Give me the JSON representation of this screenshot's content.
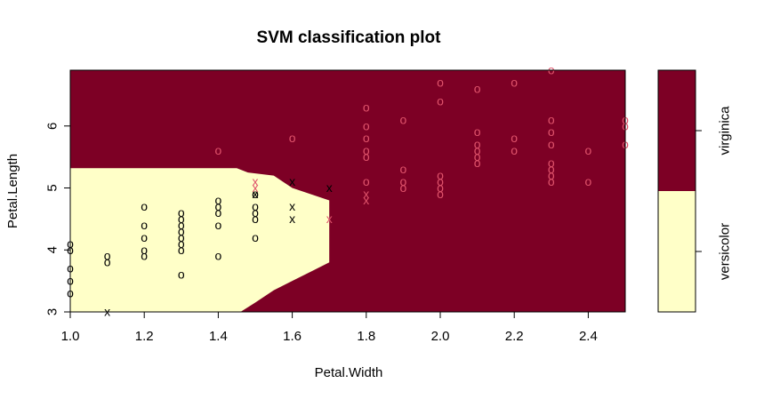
{
  "chart_data": {
    "type": "scatter",
    "title": "SVM classification plot",
    "xlabel": "Petal.Width",
    "ylabel": "Petal.Length",
    "xlim": [
      1.0,
      2.5
    ],
    "ylim": [
      3.0,
      6.9
    ],
    "x_ticks": [
      "1.0",
      "1.2",
      "1.4",
      "1.6",
      "1.8",
      "2.0",
      "2.2",
      "2.4"
    ],
    "y_ticks": [
      "3",
      "4",
      "5",
      "6"
    ],
    "classes": [
      "versicolor",
      "virginica"
    ],
    "region_colors": {
      "versicolor": "#FFFFC8",
      "virginica": "#7D0025"
    },
    "decision_boundary": [
      [
        1.0,
        5.32
      ],
      [
        1.45,
        5.32
      ],
      [
        1.48,
        5.25
      ],
      [
        1.55,
        5.2
      ],
      [
        1.6,
        5.0
      ],
      [
        1.7,
        4.8
      ],
      [
        1.7,
        3.8
      ],
      [
        1.65,
        3.65
      ],
      [
        1.6,
        3.5
      ],
      [
        1.55,
        3.35
      ],
      [
        1.5,
        3.15
      ],
      [
        1.46,
        3.0
      ],
      [
        1.0,
        3.0
      ]
    ],
    "marker_colors": {
      "versicolor": "#000000",
      "virginica": "#DF536B"
    },
    "marker_legend": {
      "o": "data point",
      "x": "support vector"
    },
    "points": [
      {
        "x": 1.0,
        "y": 3.3,
        "m": "o",
        "c": "versicolor"
      },
      {
        "x": 1.0,
        "y": 3.5,
        "m": "o",
        "c": "versicolor"
      },
      {
        "x": 1.0,
        "y": 3.7,
        "m": "o",
        "c": "versicolor"
      },
      {
        "x": 1.0,
        "y": 4.0,
        "m": "o",
        "c": "versicolor"
      },
      {
        "x": 1.0,
        "y": 4.1,
        "m": "o",
        "c": "versicolor"
      },
      {
        "x": 1.1,
        "y": 3.0,
        "m": "x",
        "c": "versicolor"
      },
      {
        "x": 1.1,
        "y": 3.8,
        "m": "o",
        "c": "versicolor"
      },
      {
        "x": 1.1,
        "y": 3.9,
        "m": "o",
        "c": "versicolor"
      },
      {
        "x": 1.2,
        "y": 3.9,
        "m": "o",
        "c": "versicolor"
      },
      {
        "x": 1.2,
        "y": 4.0,
        "m": "o",
        "c": "versicolor"
      },
      {
        "x": 1.2,
        "y": 4.2,
        "m": "o",
        "c": "versicolor"
      },
      {
        "x": 1.2,
        "y": 4.4,
        "m": "o",
        "c": "versicolor"
      },
      {
        "x": 1.2,
        "y": 4.7,
        "m": "o",
        "c": "versicolor"
      },
      {
        "x": 1.3,
        "y": 3.6,
        "m": "o",
        "c": "versicolor"
      },
      {
        "x": 1.3,
        "y": 4.0,
        "m": "o",
        "c": "versicolor"
      },
      {
        "x": 1.3,
        "y": 4.1,
        "m": "o",
        "c": "versicolor"
      },
      {
        "x": 1.3,
        "y": 4.2,
        "m": "o",
        "c": "versicolor"
      },
      {
        "x": 1.3,
        "y": 4.3,
        "m": "o",
        "c": "versicolor"
      },
      {
        "x": 1.3,
        "y": 4.4,
        "m": "o",
        "c": "versicolor"
      },
      {
        "x": 1.3,
        "y": 4.5,
        "m": "o",
        "c": "versicolor"
      },
      {
        "x": 1.3,
        "y": 4.6,
        "m": "o",
        "c": "versicolor"
      },
      {
        "x": 1.4,
        "y": 3.9,
        "m": "o",
        "c": "versicolor"
      },
      {
        "x": 1.4,
        "y": 4.4,
        "m": "o",
        "c": "versicolor"
      },
      {
        "x": 1.4,
        "y": 4.6,
        "m": "o",
        "c": "versicolor"
      },
      {
        "x": 1.4,
        "y": 4.7,
        "m": "o",
        "c": "versicolor"
      },
      {
        "x": 1.4,
        "y": 4.8,
        "m": "o",
        "c": "versicolor"
      },
      {
        "x": 1.5,
        "y": 4.2,
        "m": "o",
        "c": "versicolor"
      },
      {
        "x": 1.5,
        "y": 4.5,
        "m": "o",
        "c": "versicolor"
      },
      {
        "x": 1.5,
        "y": 4.6,
        "m": "o",
        "c": "versicolor"
      },
      {
        "x": 1.5,
        "y": 4.7,
        "m": "o",
        "c": "versicolor"
      },
      {
        "x": 1.5,
        "y": 4.9,
        "m": "o",
        "c": "versicolor"
      },
      {
        "x": 1.5,
        "y": 4.9,
        "m": "x",
        "c": "versicolor"
      },
      {
        "x": 1.6,
        "y": 4.5,
        "m": "x",
        "c": "versicolor"
      },
      {
        "x": 1.6,
        "y": 4.7,
        "m": "x",
        "c": "versicolor"
      },
      {
        "x": 1.6,
        "y": 5.1,
        "m": "x",
        "c": "versicolor"
      },
      {
        "x": 1.7,
        "y": 5.0,
        "m": "x",
        "c": "versicolor"
      },
      {
        "x": 1.4,
        "y": 5.6,
        "m": "o",
        "c": "virginica"
      },
      {
        "x": 1.5,
        "y": 5.0,
        "m": "x",
        "c": "virginica"
      },
      {
        "x": 1.5,
        "y": 5.1,
        "m": "x",
        "c": "virginica"
      },
      {
        "x": 1.6,
        "y": 5.8,
        "m": "o",
        "c": "virginica"
      },
      {
        "x": 1.7,
        "y": 4.5,
        "m": "x",
        "c": "virginica"
      },
      {
        "x": 1.8,
        "y": 4.8,
        "m": "x",
        "c": "virginica"
      },
      {
        "x": 1.8,
        "y": 4.9,
        "m": "x",
        "c": "virginica"
      },
      {
        "x": 1.8,
        "y": 5.1,
        "m": "o",
        "c": "virginica"
      },
      {
        "x": 1.8,
        "y": 5.5,
        "m": "o",
        "c": "virginica"
      },
      {
        "x": 1.8,
        "y": 5.6,
        "m": "o",
        "c": "virginica"
      },
      {
        "x": 1.8,
        "y": 5.8,
        "m": "o",
        "c": "virginica"
      },
      {
        "x": 1.8,
        "y": 6.0,
        "m": "o",
        "c": "virginica"
      },
      {
        "x": 1.8,
        "y": 6.3,
        "m": "o",
        "c": "virginica"
      },
      {
        "x": 1.9,
        "y": 5.0,
        "m": "o",
        "c": "virginica"
      },
      {
        "x": 1.9,
        "y": 5.1,
        "m": "o",
        "c": "virginica"
      },
      {
        "x": 1.9,
        "y": 5.3,
        "m": "o",
        "c": "virginica"
      },
      {
        "x": 1.9,
        "y": 6.1,
        "m": "o",
        "c": "virginica"
      },
      {
        "x": 2.0,
        "y": 4.9,
        "m": "o",
        "c": "virginica"
      },
      {
        "x": 2.0,
        "y": 5.0,
        "m": "o",
        "c": "virginica"
      },
      {
        "x": 2.0,
        "y": 5.1,
        "m": "o",
        "c": "virginica"
      },
      {
        "x": 2.0,
        "y": 5.2,
        "m": "o",
        "c": "virginica"
      },
      {
        "x": 2.0,
        "y": 6.4,
        "m": "o",
        "c": "virginica"
      },
      {
        "x": 2.0,
        "y": 6.7,
        "m": "o",
        "c": "virginica"
      },
      {
        "x": 2.1,
        "y": 5.4,
        "m": "o",
        "c": "virginica"
      },
      {
        "x": 2.1,
        "y": 5.5,
        "m": "o",
        "c": "virginica"
      },
      {
        "x": 2.1,
        "y": 5.6,
        "m": "o",
        "c": "virginica"
      },
      {
        "x": 2.1,
        "y": 5.7,
        "m": "o",
        "c": "virginica"
      },
      {
        "x": 2.1,
        "y": 5.9,
        "m": "o",
        "c": "virginica"
      },
      {
        "x": 2.1,
        "y": 6.6,
        "m": "o",
        "c": "virginica"
      },
      {
        "x": 2.2,
        "y": 5.6,
        "m": "o",
        "c": "virginica"
      },
      {
        "x": 2.2,
        "y": 5.8,
        "m": "o",
        "c": "virginica"
      },
      {
        "x": 2.2,
        "y": 6.7,
        "m": "o",
        "c": "virginica"
      },
      {
        "x": 2.3,
        "y": 5.1,
        "m": "o",
        "c": "virginica"
      },
      {
        "x": 2.3,
        "y": 5.2,
        "m": "o",
        "c": "virginica"
      },
      {
        "x": 2.3,
        "y": 5.3,
        "m": "o",
        "c": "virginica"
      },
      {
        "x": 2.3,
        "y": 5.4,
        "m": "o",
        "c": "virginica"
      },
      {
        "x": 2.3,
        "y": 5.7,
        "m": "o",
        "c": "virginica"
      },
      {
        "x": 2.3,
        "y": 5.9,
        "m": "o",
        "c": "virginica"
      },
      {
        "x": 2.3,
        "y": 6.1,
        "m": "o",
        "c": "virginica"
      },
      {
        "x": 2.3,
        "y": 6.9,
        "m": "o",
        "c": "virginica"
      },
      {
        "x": 2.4,
        "y": 5.1,
        "m": "o",
        "c": "virginica"
      },
      {
        "x": 2.4,
        "y": 5.6,
        "m": "o",
        "c": "virginica"
      },
      {
        "x": 2.5,
        "y": 5.7,
        "m": "o",
        "c": "virginica"
      },
      {
        "x": 2.5,
        "y": 6.0,
        "m": "o",
        "c": "virginica"
      },
      {
        "x": 2.5,
        "y": 6.1,
        "m": "o",
        "c": "virginica"
      }
    ]
  }
}
